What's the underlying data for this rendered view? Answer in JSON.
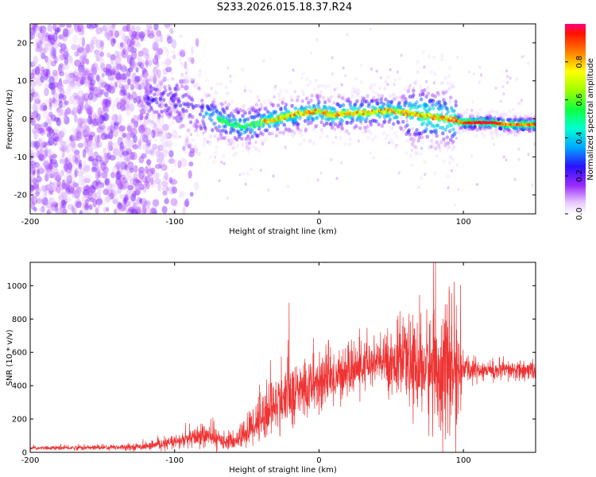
{
  "title": "S233.2026.015.18.37.R24",
  "chart_data": [
    {
      "type": "heatmap",
      "name": "spectrogram",
      "xlabel": "Height of straight line (km)",
      "ylabel": "Frequency (Hz)",
      "xlim": [
        -200,
        150
      ],
      "ylim": [
        -25,
        25
      ],
      "xticks": [
        -200,
        -100,
        0,
        100
      ],
      "yticks": [
        -20,
        -10,
        0,
        10,
        20
      ],
      "colorbar": {
        "label": "Normalized spectral amplitude",
        "range": [
          0,
          1
        ],
        "ticks": [
          0.0,
          0.2,
          0.4,
          0.6,
          0.8
        ],
        "tick_labels": [
          "0.0",
          "0.2",
          "0.4",
          "0.6",
          "0.8"
        ]
      },
      "ridge": [
        {
          "x": -100,
          "y": 5
        },
        {
          "x": -90,
          "y": 3
        },
        {
          "x": -80,
          "y": 1
        },
        {
          "x": -70,
          "y": 0
        },
        {
          "x": -60,
          "y": -1.5
        },
        {
          "x": -50,
          "y": -2
        },
        {
          "x": -40,
          "y": -1
        },
        {
          "x": -30,
          "y": 0
        },
        {
          "x": -20,
          "y": 1
        },
        {
          "x": -10,
          "y": 1.5
        },
        {
          "x": 0,
          "y": 2
        },
        {
          "x": 10,
          "y": 1
        },
        {
          "x": 20,
          "y": 1.5
        },
        {
          "x": 30,
          "y": 1.5
        },
        {
          "x": 40,
          "y": 2
        },
        {
          "x": 50,
          "y": 2
        },
        {
          "x": 60,
          "y": 1.5
        },
        {
          "x": 70,
          "y": 1
        },
        {
          "x": 80,
          "y": 0.5
        },
        {
          "x": 90,
          "y": 0
        },
        {
          "x": 100,
          "y": -1
        },
        {
          "x": 110,
          "y": -1
        },
        {
          "x": 120,
          "y": -1
        },
        {
          "x": 130,
          "y": -1.5
        },
        {
          "x": 140,
          "y": -1.5
        },
        {
          "x": 150,
          "y": -1.5
        }
      ]
    },
    {
      "type": "line",
      "name": "snr",
      "xlabel": "Height of straight line (km)",
      "ylabel": "SNR (10 * v/v)",
      "xlim": [
        -200,
        150
      ],
      "ylim": [
        0,
        1140
      ],
      "xticks": [
        -200,
        -100,
        0,
        100
      ],
      "yticks": [
        0,
        200,
        400,
        600,
        800,
        1000
      ],
      "color": "#ee3333",
      "envelope": [
        {
          "x": -200,
          "mean": 25,
          "spread": 10
        },
        {
          "x": -160,
          "mean": 28,
          "spread": 15
        },
        {
          "x": -120,
          "mean": 35,
          "spread": 20
        },
        {
          "x": -100,
          "mean": 60,
          "spread": 40
        },
        {
          "x": -80,
          "mean": 100,
          "spread": 70
        },
        {
          "x": -60,
          "mean": 60,
          "spread": 40
        },
        {
          "x": -50,
          "mean": 120,
          "spread": 100
        },
        {
          "x": -40,
          "mean": 220,
          "spread": 160
        },
        {
          "x": -25,
          "mean": 320,
          "spread": 180
        },
        {
          "x": 0,
          "mean": 420,
          "spread": 180
        },
        {
          "x": 20,
          "mean": 480,
          "spread": 140
        },
        {
          "x": 40,
          "mean": 540,
          "spread": 150
        },
        {
          "x": 60,
          "mean": 540,
          "spread": 220
        },
        {
          "x": 75,
          "mean": 500,
          "spread": 320
        },
        {
          "x": 85,
          "mean": 500,
          "spread": 400
        },
        {
          "x": 95,
          "mean": 480,
          "spread": 380
        },
        {
          "x": 100,
          "mean": 500,
          "spread": 80
        },
        {
          "x": 120,
          "mean": 490,
          "spread": 60
        },
        {
          "x": 150,
          "mean": 490,
          "spread": 60
        }
      ]
    }
  ]
}
